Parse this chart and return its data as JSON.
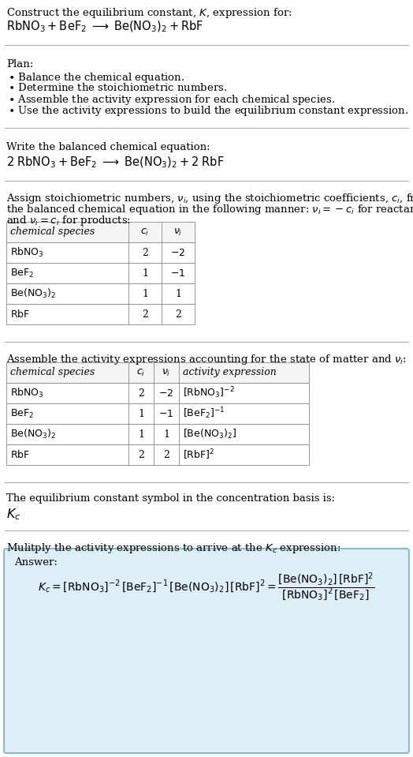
{
  "bg_color": "#ffffff",
  "text_color": "#000000",
  "divider_color": "#aaaaaa",
  "answer_box_color": "#ddeef6",
  "answer_box_border": "#88bbcc",
  "font_size": 9.5,
  "sections": {
    "title_line1": "Construct the equilibrium constant, $K$, expression for:",
    "title_line2": "$\\mathrm{RbNO_3 + BeF_2 \\;\\longrightarrow\\; Be(NO_3)_2 + RbF}$",
    "plan_header": "Plan:",
    "plan_bullets": [
      "\\bullet  Balance the chemical equation.",
      "\\bullet  Determine the stoichiometric numbers.",
      "\\bullet  Assemble the activity expression for each chemical species.",
      "\\bullet  Use the activity expressions to build the equilibrium constant expression."
    ],
    "balanced_header": "Write the balanced chemical equation:",
    "balanced_eq": "$\\mathrm{2\\;RbNO_3 + BeF_2 \\;\\longrightarrow\\; Be(NO_3)_2 + 2\\;RbF}$",
    "stoich_line1": "Assign stoichiometric numbers, $\\nu_i$, using the stoichiometric coefficients, $c_i$, from",
    "stoich_line2": "the balanced chemical equation in the following manner: $\\nu_i = -c_i$ for reactants",
    "stoich_line3": "and $\\nu_i = c_i$ for products:",
    "table1_rows": [
      [
        "$\\mathrm{RbNO_3}$",
        "2",
        "$-2$"
      ],
      [
        "$\\mathrm{BeF_2}$",
        "1",
        "$-1$"
      ],
      [
        "$\\mathrm{Be(NO_3)_2}$",
        "1",
        "1"
      ],
      [
        "$\\mathrm{RbF}$",
        "2",
        "2"
      ]
    ],
    "activity_header": "Assemble the activity expressions accounting for the state of matter and $\\nu_i$:",
    "table2_rows": [
      [
        "$\\mathrm{RbNO_3}$",
        "2",
        "$-2$",
        "$[\\mathrm{RbNO_3}]^{-2}$"
      ],
      [
        "$\\mathrm{BeF_2}$",
        "1",
        "$-1$",
        "$[\\mathrm{BeF_2}]^{-1}$"
      ],
      [
        "$\\mathrm{Be(NO_3)_2}$",
        "1",
        "1",
        "$[\\mathrm{Be(NO_3)_2}]$"
      ],
      [
        "$\\mathrm{RbF}$",
        "2",
        "2",
        "$[\\mathrm{RbF}]^2$"
      ]
    ],
    "kc_header": "The equilibrium constant symbol in the concentration basis is:",
    "kc_symbol": "$K_c$",
    "multiply_header": "Mulitply the activity expressions to arrive at the $K_c$ expression:",
    "answer_label": "Answer:",
    "kc_eq": "$K_c = [\\mathrm{RbNO_3}]^{-2}\\,[\\mathrm{BeF_2}]^{-1}\\,[\\mathrm{Be(NO_3)_2}]\\,[\\mathrm{RbF}]^2 = \\dfrac{[\\mathrm{Be(NO_3)_2}]\\,[\\mathrm{RbF}]^2}{[\\mathrm{RbNO_3}]^2\\,[\\mathrm{BeF_2}]}$"
  }
}
